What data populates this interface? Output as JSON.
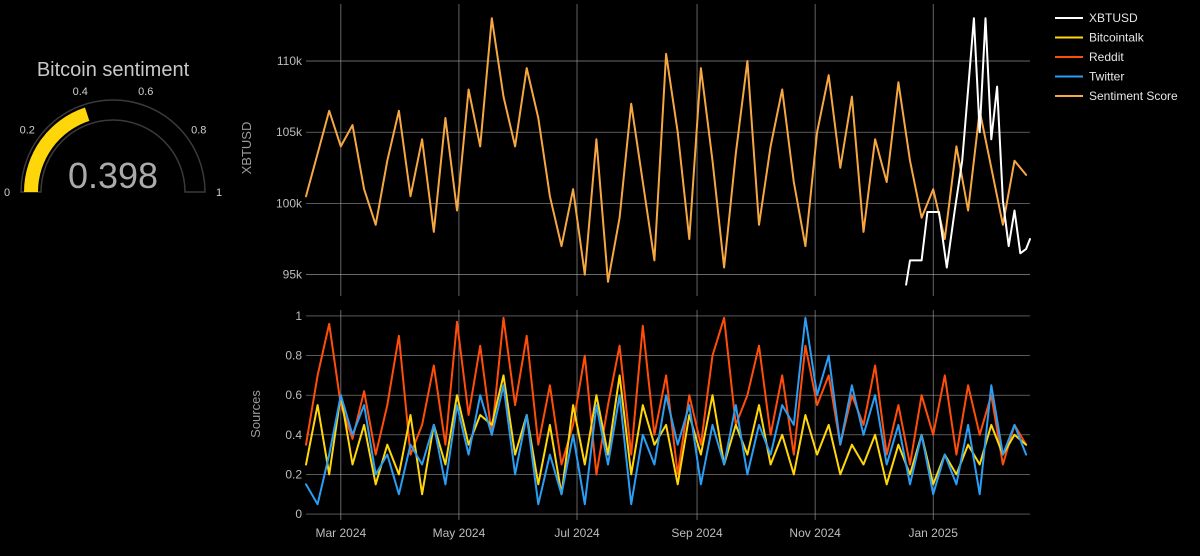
{
  "colors": {
    "background": "#000000",
    "grid": "#b0b0b0",
    "xbtusd": "#ffffff",
    "bitcointalk": "#ffd60a",
    "reddit": "#ff4d0a",
    "twitter": "#2a9df4",
    "sentiment": "#f5a742",
    "gauge_bar": "#ffd60a",
    "gauge_track": "#3a3a3a"
  },
  "gauge": {
    "title": "Bitcoin sentiment",
    "value": 0.398,
    "value_text": "0.398",
    "range": [
      0,
      1
    ],
    "ticks": [
      0,
      0.2,
      0.4,
      0.6,
      0.8,
      1
    ],
    "tick_labels": [
      "0",
      "0.2",
      "0.4",
      "0.6",
      "0.8",
      "1"
    ]
  },
  "legend": {
    "position": "top-right",
    "items": [
      {
        "label": "XBTUSD",
        "color": "#ffffff"
      },
      {
        "label": "Bitcointalk",
        "color": "#ffd60a"
      },
      {
        "label": "Reddit",
        "color": "#ff4d0a"
      },
      {
        "label": "Twitter",
        "color": "#2a9df4"
      },
      {
        "label": "Sentiment Score",
        "color": "#f5a742"
      }
    ]
  },
  "chart_data": [
    {
      "type": "line",
      "panel": "top",
      "ylabel": "XBTUSD",
      "ylim": [
        93500,
        114000
      ],
      "xlim": [
        "2024-02-12",
        "2025-02-20"
      ],
      "grid": true,
      "yticks": [
        95000,
        100000,
        105000,
        110000
      ],
      "ytick_labels": [
        "95k",
        "100k",
        "105k",
        "110k"
      ],
      "series": [
        {
          "name": "Sentiment Score",
          "x": [
            "2024-02-12",
            "2024-02-18",
            "2024-02-24",
            "2024-03-01",
            "2024-03-07",
            "2024-03-13",
            "2024-03-19",
            "2024-03-25",
            "2024-03-31",
            "2024-04-06",
            "2024-04-12",
            "2024-04-18",
            "2024-04-24",
            "2024-04-30",
            "2024-05-06",
            "2024-05-12",
            "2024-05-18",
            "2024-05-24",
            "2024-05-30",
            "2024-06-05",
            "2024-06-11",
            "2024-06-17",
            "2024-06-23",
            "2024-06-29",
            "2024-07-05",
            "2024-07-11",
            "2024-07-17",
            "2024-07-23",
            "2024-07-29",
            "2024-08-04",
            "2024-08-10",
            "2024-08-16",
            "2024-08-22",
            "2024-08-28",
            "2024-09-03",
            "2024-09-09",
            "2024-09-15",
            "2024-09-21",
            "2024-09-27",
            "2024-10-03",
            "2024-10-09",
            "2024-10-15",
            "2024-10-21",
            "2024-10-27",
            "2024-11-02",
            "2024-11-08",
            "2024-11-14",
            "2024-11-20",
            "2024-11-26",
            "2024-12-02",
            "2024-12-08",
            "2024-12-14",
            "2024-12-20",
            "2024-12-26",
            "2025-01-01",
            "2025-01-07",
            "2025-01-13",
            "2025-01-19",
            "2025-01-25",
            "2025-01-31",
            "2025-02-06",
            "2025-02-12",
            "2025-02-18"
          ],
          "values": [
            100500,
            103500,
            106500,
            104000,
            105500,
            101000,
            98500,
            103000,
            106500,
            100500,
            104500,
            98000,
            106000,
            99500,
            108000,
            104000,
            113000,
            107500,
            104000,
            109500,
            106000,
            100500,
            97000,
            101000,
            95000,
            104500,
            94500,
            99000,
            107000,
            101500,
            96000,
            110500,
            105000,
            97500,
            109500,
            103000,
            95500,
            103500,
            110000,
            98500,
            104000,
            108000,
            101500,
            97000,
            105000,
            109000,
            102500,
            107500,
            98000,
            104500,
            101500,
            108500,
            103000,
            99000,
            101000,
            97500,
            104000,
            99500,
            106500,
            102500,
            98500,
            103000,
            102000
          ]
        },
        {
          "name": "XBTUSD",
          "x": [
            "2024-12-18",
            "2024-12-20",
            "2024-12-26",
            "2024-12-29",
            "2025-01-04",
            "2025-01-08",
            "2025-01-12",
            "2025-01-16",
            "2025-01-19",
            "2025-01-22",
            "2025-01-25",
            "2025-01-28",
            "2025-01-31",
            "2025-02-03",
            "2025-02-06",
            "2025-02-09",
            "2025-02-12",
            "2025-02-15",
            "2025-02-18",
            "2025-02-20"
          ],
          "values": [
            94300,
            96000,
            96000,
            99400,
            99400,
            95500,
            99400,
            103000,
            108000,
            113000,
            105000,
            113000,
            104500,
            108200,
            100200,
            97000,
            99500,
            96500,
            96800,
            97500
          ]
        }
      ]
    },
    {
      "type": "line",
      "panel": "bottom",
      "ylabel": "Sources",
      "ylim": [
        -0.03,
        1.03
      ],
      "xlim": [
        "2024-02-12",
        "2025-02-20"
      ],
      "grid": true,
      "yticks": [
        0,
        0.2,
        0.4,
        0.6,
        0.8,
        1
      ],
      "ytick_labels": [
        "0",
        "0.2",
        "0.4",
        "0.6",
        "0.8",
        "1"
      ],
      "x_ticks": [
        "2024-03-01",
        "2024-05-01",
        "2024-07-01",
        "2024-09-01",
        "2024-11-01",
        "2025-01-01"
      ],
      "x_tick_labels": [
        "Mar 2024",
        "May 2024",
        "Jul 2024",
        "Sep 2024",
        "Nov 2024",
        "Jan 2025"
      ],
      "series": [
        {
          "name": "Reddit",
          "x": [
            "2024-02-12",
            "2024-02-18",
            "2024-02-24",
            "2024-03-01",
            "2024-03-07",
            "2024-03-13",
            "2024-03-19",
            "2024-03-25",
            "2024-03-31",
            "2024-04-06",
            "2024-04-12",
            "2024-04-18",
            "2024-04-24",
            "2024-04-30",
            "2024-05-06",
            "2024-05-12",
            "2024-05-18",
            "2024-05-24",
            "2024-05-30",
            "2024-06-05",
            "2024-06-11",
            "2024-06-17",
            "2024-06-23",
            "2024-06-29",
            "2024-07-05",
            "2024-07-11",
            "2024-07-17",
            "2024-07-23",
            "2024-07-29",
            "2024-08-04",
            "2024-08-10",
            "2024-08-16",
            "2024-08-22",
            "2024-08-28",
            "2024-09-03",
            "2024-09-09",
            "2024-09-15",
            "2024-09-21",
            "2024-09-27",
            "2024-10-03",
            "2024-10-09",
            "2024-10-15",
            "2024-10-21",
            "2024-10-27",
            "2024-11-02",
            "2024-11-08",
            "2024-11-14",
            "2024-11-20",
            "2024-11-26",
            "2024-12-02",
            "2024-12-08",
            "2024-12-14",
            "2024-12-20",
            "2024-12-26",
            "2025-01-01",
            "2025-01-07",
            "2025-01-13",
            "2025-01-19",
            "2025-01-25",
            "2025-01-31",
            "2025-02-06",
            "2025-02-12",
            "2025-02-18"
          ],
          "values": [
            0.35,
            0.7,
            0.96,
            0.55,
            0.38,
            0.62,
            0.3,
            0.55,
            0.9,
            0.3,
            0.45,
            0.75,
            0.35,
            0.97,
            0.5,
            0.85,
            0.4,
            0.99,
            0.55,
            0.9,
            0.35,
            0.65,
            0.25,
            0.45,
            0.8,
            0.2,
            0.55,
            0.85,
            0.3,
            0.95,
            0.4,
            0.7,
            0.2,
            0.6,
            0.35,
            0.8,
            0.99,
            0.45,
            0.6,
            0.85,
            0.4,
            0.7,
            0.3,
            0.85,
            0.55,
            0.7,
            0.35,
            0.6,
            0.45,
            0.75,
            0.3,
            0.55,
            0.25,
            0.6,
            0.4,
            0.7,
            0.3,
            0.65,
            0.4,
            0.6,
            0.25,
            0.45,
            0.35
          ]
        },
        {
          "name": "Bitcointalk",
          "x": [
            "2024-02-12",
            "2024-02-18",
            "2024-02-24",
            "2024-03-01",
            "2024-03-07",
            "2024-03-13",
            "2024-03-19",
            "2024-03-25",
            "2024-03-31",
            "2024-04-06",
            "2024-04-12",
            "2024-04-18",
            "2024-04-24",
            "2024-04-30",
            "2024-05-06",
            "2024-05-12",
            "2024-05-18",
            "2024-05-24",
            "2024-05-30",
            "2024-06-05",
            "2024-06-11",
            "2024-06-17",
            "2024-06-23",
            "2024-06-29",
            "2024-07-05",
            "2024-07-11",
            "2024-07-17",
            "2024-07-23",
            "2024-07-29",
            "2024-08-04",
            "2024-08-10",
            "2024-08-16",
            "2024-08-22",
            "2024-08-28",
            "2024-09-03",
            "2024-09-09",
            "2024-09-15",
            "2024-09-21",
            "2024-09-27",
            "2024-10-03",
            "2024-10-09",
            "2024-10-15",
            "2024-10-21",
            "2024-10-27",
            "2024-11-02",
            "2024-11-08",
            "2024-11-14",
            "2024-11-20",
            "2024-11-26",
            "2024-12-02",
            "2024-12-08",
            "2024-12-14",
            "2024-12-20",
            "2024-12-26",
            "2025-01-01",
            "2025-01-07",
            "2025-01-13",
            "2025-01-19",
            "2025-01-25",
            "2025-01-31",
            "2025-02-06",
            "2025-02-12",
            "2025-02-18"
          ],
          "values": [
            0.25,
            0.55,
            0.2,
            0.6,
            0.25,
            0.45,
            0.15,
            0.35,
            0.2,
            0.5,
            0.1,
            0.45,
            0.25,
            0.6,
            0.35,
            0.5,
            0.45,
            0.7,
            0.3,
            0.5,
            0.15,
            0.45,
            0.1,
            0.55,
            0.25,
            0.6,
            0.3,
            0.7,
            0.2,
            0.55,
            0.35,
            0.45,
            0.15,
            0.5,
            0.3,
            0.6,
            0.25,
            0.45,
            0.3,
            0.55,
            0.25,
            0.4,
            0.2,
            0.5,
            0.3,
            0.45,
            0.2,
            0.35,
            0.25,
            0.4,
            0.15,
            0.35,
            0.2,
            0.4,
            0.15,
            0.3,
            0.2,
            0.35,
            0.25,
            0.45,
            0.3,
            0.4,
            0.35
          ]
        },
        {
          "name": "Twitter",
          "x": [
            "2024-02-12",
            "2024-02-18",
            "2024-02-24",
            "2024-03-01",
            "2024-03-07",
            "2024-03-13",
            "2024-03-19",
            "2024-03-25",
            "2024-03-31",
            "2024-04-06",
            "2024-04-12",
            "2024-04-18",
            "2024-04-24",
            "2024-04-30",
            "2024-05-06",
            "2024-05-12",
            "2024-05-18",
            "2024-05-24",
            "2024-05-30",
            "2024-06-05",
            "2024-06-11",
            "2024-06-17",
            "2024-06-23",
            "2024-06-29",
            "2024-07-05",
            "2024-07-11",
            "2024-07-17",
            "2024-07-23",
            "2024-07-29",
            "2024-08-04",
            "2024-08-10",
            "2024-08-16",
            "2024-08-22",
            "2024-08-28",
            "2024-09-03",
            "2024-09-09",
            "2024-09-15",
            "2024-09-21",
            "2024-09-27",
            "2024-10-03",
            "2024-10-09",
            "2024-10-15",
            "2024-10-21",
            "2024-10-27",
            "2024-11-02",
            "2024-11-08",
            "2024-11-14",
            "2024-11-20",
            "2024-11-26",
            "2024-12-02",
            "2024-12-08",
            "2024-12-14",
            "2024-12-20",
            "2024-12-26",
            "2025-01-01",
            "2025-01-07",
            "2025-01-13",
            "2025-01-19",
            "2025-01-25",
            "2025-01-31",
            "2025-02-06",
            "2025-02-12",
            "2025-02-18"
          ],
          "values": [
            0.15,
            0.05,
            0.3,
            0.6,
            0.4,
            0.55,
            0.2,
            0.3,
            0.1,
            0.35,
            0.25,
            0.45,
            0.15,
            0.55,
            0.3,
            0.6,
            0.4,
            0.65,
            0.2,
            0.5,
            0.05,
            0.3,
            0.1,
            0.4,
            0.05,
            0.55,
            0.25,
            0.6,
            0.05,
            0.4,
            0.25,
            0.6,
            0.35,
            0.55,
            0.15,
            0.45,
            0.25,
            0.55,
            0.2,
            0.45,
            0.3,
            0.55,
            0.45,
            0.99,
            0.6,
            0.8,
            0.35,
            0.65,
            0.4,
            0.6,
            0.25,
            0.45,
            0.15,
            0.4,
            0.1,
            0.3,
            0.15,
            0.45,
            0.1,
            0.65,
            0.3,
            0.45,
            0.3
          ]
        }
      ]
    }
  ]
}
